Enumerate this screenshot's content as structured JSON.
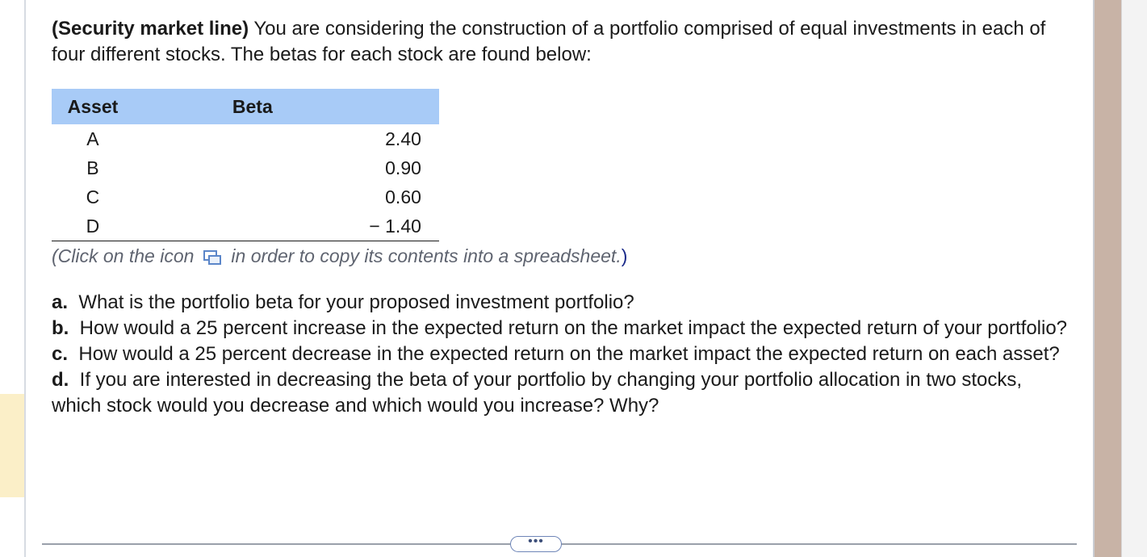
{
  "problem": {
    "lead": "(Security market line)",
    "text": "You are considering the construction of a portfolio comprised of equal investments in each of four different stocks.  The betas for each stock are found below:"
  },
  "table": {
    "headers": [
      "Asset",
      "Beta"
    ],
    "rows": [
      {
        "asset": "A",
        "beta": "2.40"
      },
      {
        "asset": "B",
        "beta": "0.90"
      },
      {
        "asset": "C",
        "beta": "0.60"
      },
      {
        "asset": "D",
        "beta": "− 1.40"
      }
    ]
  },
  "copy_note": {
    "before": "(Click on the icon",
    "after": "in order to copy its contents into a spreadsheet.",
    "close": ")",
    "icon": "copy-spreadsheet-icon"
  },
  "questions": [
    {
      "label": "a.",
      "text": "What is the portfolio beta for your proposed investment portfolio?"
    },
    {
      "label": "b.",
      "text": "How would a 25 percent increase in the expected return on the market impact the expected return of your portfolio?"
    },
    {
      "label": "c.",
      "text": "How would a 25 percent decrease in the expected return on the market impact the expected return on each asset?"
    },
    {
      "label": "d.",
      "text": "If you are interested in decreasing the beta of your portfolio by changing your portfolio allocation in two stocks, which stock would you decrease and which would you increase?  Why?"
    }
  ],
  "more_button": {
    "label": "•••"
  },
  "colors": {
    "table_header": "#a8cbf7",
    "right_panel": "#c8b3a6",
    "left_highlight": "#fbefc8"
  }
}
